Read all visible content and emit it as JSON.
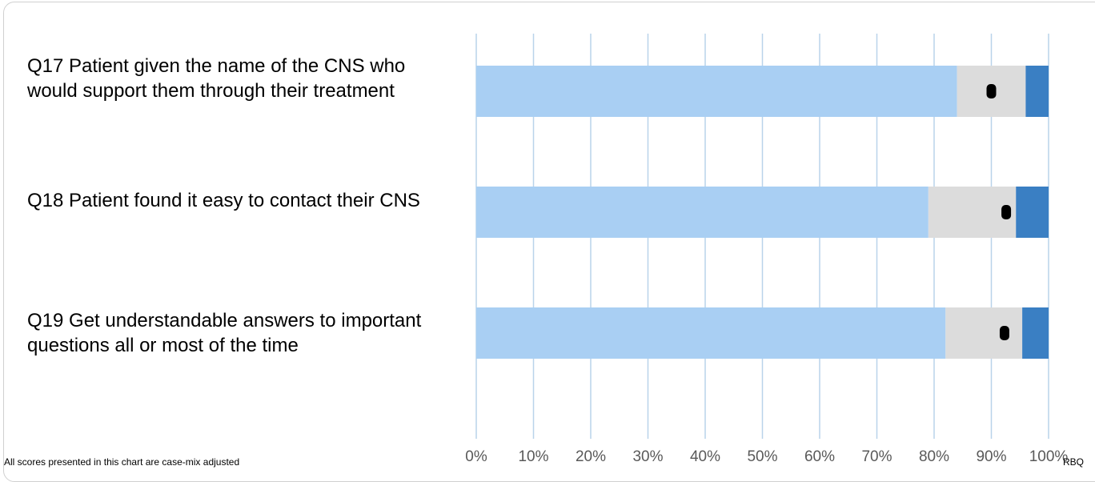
{
  "chart_data": {
    "type": "bar",
    "orientation": "horizontal",
    "stacked": true,
    "categories": [
      "Q17 Patient given the name of the CNS who would support them through their treatment",
      "Q18 Patient found it easy to contact their CNS",
      "Q19 Get understandable answers to important questions all or most of the time"
    ],
    "series": [
      {
        "color": "#a9cff3",
        "values": [
          84,
          79,
          82
        ]
      },
      {
        "color": "#dcdcdc",
        "values": [
          12,
          15.3,
          13.4
        ]
      },
      {
        "color": "#3a7fc3",
        "values": [
          4,
          5.7,
          4.6
        ]
      }
    ],
    "markers": [
      90,
      92.6,
      92.3
    ],
    "marker_color": "#000000",
    "xlim": [
      0,
      100
    ],
    "xticks": [
      "0%",
      "10%",
      "20%",
      "30%",
      "40%",
      "50%",
      "60%",
      "70%",
      "80%",
      "90%",
      "100%"
    ],
    "grid": true,
    "grid_color": "#b9d3ea",
    "tick_label_color": "#595959",
    "title": "",
    "xlabel": "",
    "ylabel": ""
  },
  "footer": {
    "note": "All scores presented in this chart are case-mix adjusted",
    "code": "RBQ"
  }
}
